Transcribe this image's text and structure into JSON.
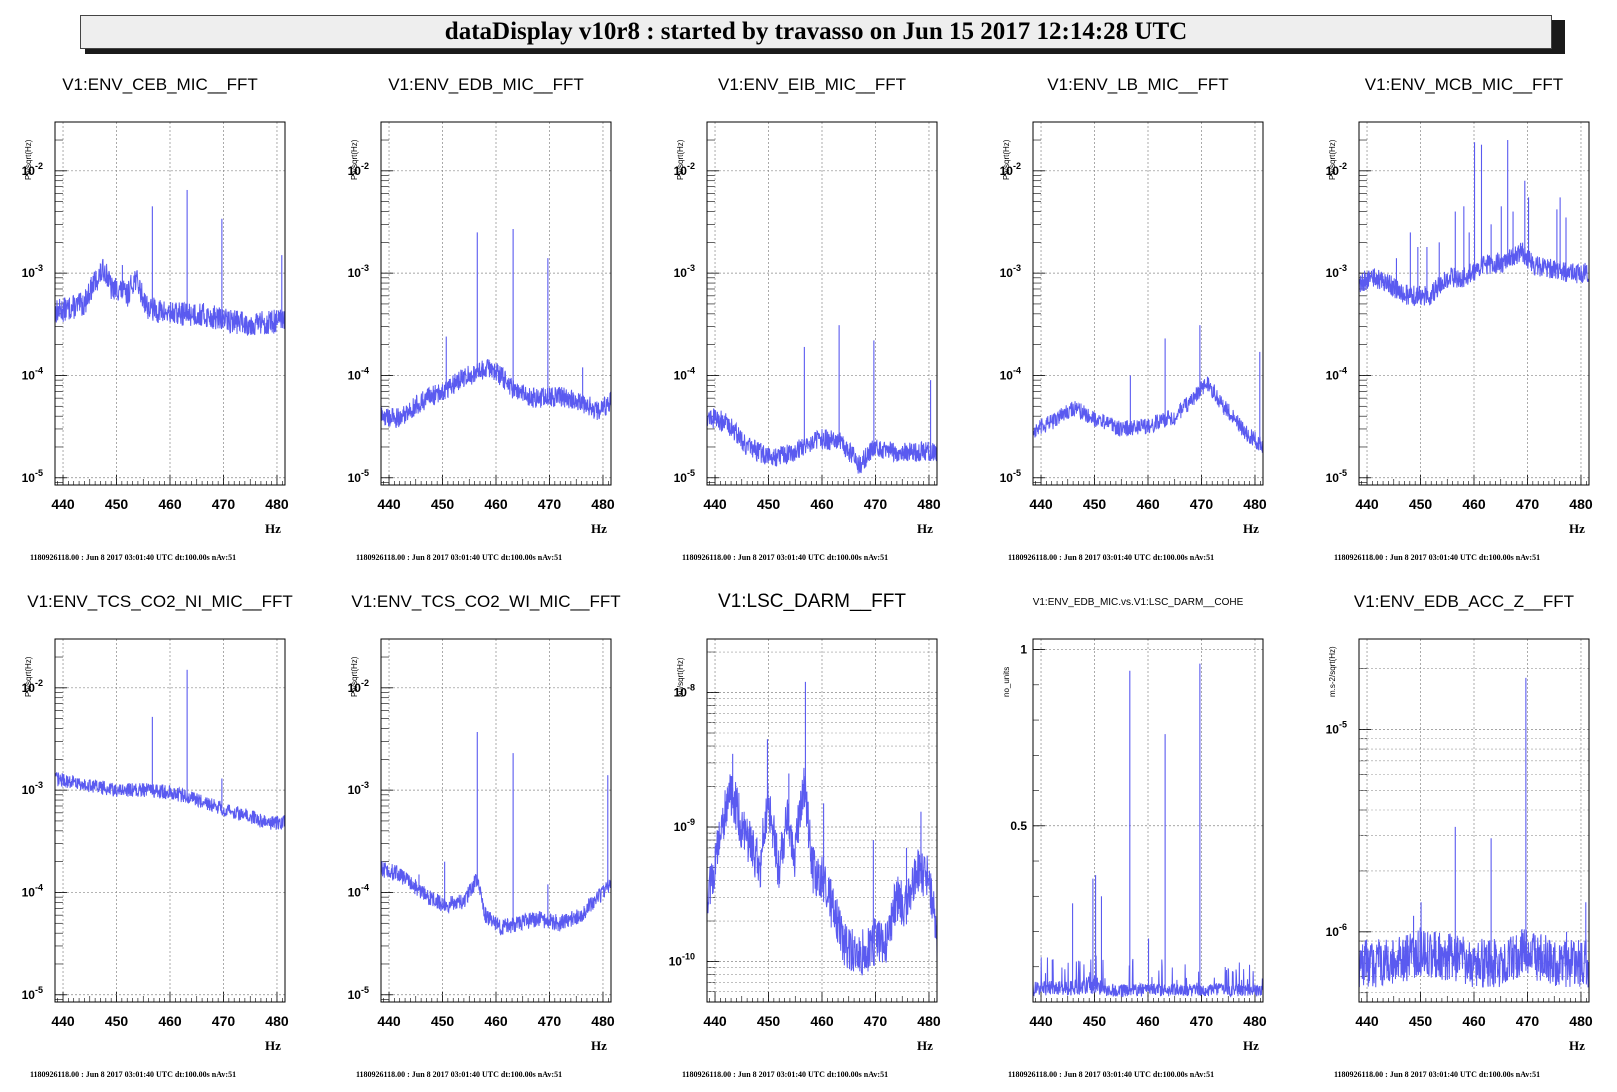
{
  "window_title": "dataDisplay v10r8 : started by travasso on Jun 15 2017 12:14:28 UTC",
  "footer_text": "1180926118.00 : Jun  8 2017 03:01:40 UTC dt:100.00s nAv:51",
  "x_unit": "Hz",
  "line_color": "#5a5af0",
  "chart_data": [
    {
      "type": "line",
      "title": "V1:ENV_CEB_MIC__FFT",
      "ylabel": "Pa/sqrt(Hz)",
      "xlabel": "Hz",
      "xlim": [
        438.5,
        481.5
      ],
      "ylog": true,
      "ylim": [
        8.5e-06,
        0.03
      ],
      "xticks": [
        440,
        450,
        460,
        470,
        480
      ],
      "yticks": [
        {
          "v": 1e-05,
          "base": "10",
          "exp": "-5"
        },
        {
          "v": 0.0001,
          "base": "10",
          "exp": "-4"
        },
        {
          "v": 0.001,
          "base": "10",
          "exp": "-3"
        },
        {
          "v": 0.01,
          "base": "10",
          "exp": "-2"
        }
      ],
      "baseline": [
        [
          438.5,
          0.00042
        ],
        [
          441,
          0.00045
        ],
        [
          444,
          0.0005
        ],
        [
          446.5,
          0.0009
        ],
        [
          447.8,
          0.0011
        ],
        [
          449,
          0.0007
        ],
        [
          450.5,
          0.0007
        ],
        [
          452,
          0.0006
        ],
        [
          453.5,
          0.0009
        ],
        [
          454.8,
          0.0006
        ],
        [
          456,
          0.00045
        ],
        [
          460,
          0.0004
        ],
        [
          465,
          0.0004
        ],
        [
          470,
          0.00035
        ],
        [
          475,
          0.00032
        ],
        [
          481.5,
          0.00034
        ]
      ],
      "peaks": [
        [
          456.7,
          0.0045
        ],
        [
          463.2,
          0.0065
        ],
        [
          469.7,
          0.0034
        ],
        [
          451.1,
          0.0012
        ],
        [
          480.9,
          0.0015
        ]
      ],
      "noise": 0.12
    },
    {
      "type": "line",
      "title": "V1:ENV_EDB_MIC__FFT",
      "ylabel": "Pa/sqrt(Hz)",
      "xlabel": "Hz",
      "xlim": [
        438.5,
        481.5
      ],
      "ylog": true,
      "ylim": [
        8.5e-06,
        0.03
      ],
      "xticks": [
        440,
        450,
        460,
        470,
        480
      ],
      "yticks": [
        {
          "v": 1e-05,
          "base": "10",
          "exp": "-5"
        },
        {
          "v": 0.0001,
          "base": "10",
          "exp": "-4"
        },
        {
          "v": 0.001,
          "base": "10",
          "exp": "-3"
        },
        {
          "v": 0.01,
          "base": "10",
          "exp": "-2"
        }
      ],
      "baseline": [
        [
          438.5,
          4e-05
        ],
        [
          442,
          3.8e-05
        ],
        [
          446,
          5.5e-05
        ],
        [
          450,
          7e-05
        ],
        [
          455,
          0.0001
        ],
        [
          459,
          0.00012
        ],
        [
          463,
          7.5e-05
        ],
        [
          467,
          6e-05
        ],
        [
          472,
          6.2e-05
        ],
        [
          476,
          5.5e-05
        ],
        [
          479,
          4.5e-05
        ],
        [
          481.5,
          5.5e-05
        ]
      ],
      "peaks": [
        [
          450.7,
          0.00024
        ],
        [
          456.5,
          0.0025
        ],
        [
          463.2,
          0.0027
        ],
        [
          469.7,
          0.0014
        ],
        [
          476.2,
          0.00012
        ],
        [
          446.3,
          7e-05
        ]
      ],
      "noise": 0.1
    },
    {
      "type": "line",
      "title": "V1:ENV_EIB_MIC__FFT",
      "ylabel": "Pa/sqrt(Hz)",
      "xlabel": "Hz",
      "xlim": [
        438.5,
        481.5
      ],
      "ylog": true,
      "ylim": [
        8.5e-06,
        0.03
      ],
      "xticks": [
        440,
        450,
        460,
        470,
        480
      ],
      "yticks": [
        {
          "v": 1e-05,
          "base": "10",
          "exp": "-5"
        },
        {
          "v": 0.0001,
          "base": "10",
          "exp": "-4"
        },
        {
          "v": 0.001,
          "base": "10",
          "exp": "-3"
        },
        {
          "v": 0.01,
          "base": "10",
          "exp": "-2"
        }
      ],
      "baseline": [
        [
          438.5,
          4e-05
        ],
        [
          442,
          3.5e-05
        ],
        [
          446,
          2e-05
        ],
        [
          450,
          1.6e-05
        ],
        [
          454,
          1.7e-05
        ],
        [
          459,
          2.4e-05
        ],
        [
          463,
          2.3e-05
        ],
        [
          466,
          1.6e-05
        ],
        [
          467,
          1.3e-05
        ],
        [
          470,
          2e-05
        ],
        [
          474,
          1.8e-05
        ],
        [
          481.5,
          1.8e-05
        ]
      ],
      "peaks": [
        [
          456.7,
          0.00019
        ],
        [
          463.2,
          0.00031
        ],
        [
          469.7,
          0.00022
        ],
        [
          480.3,
          9e-05
        ]
      ],
      "noise": 0.1
    },
    {
      "type": "line",
      "title": "V1:ENV_LB_MIC__FFT",
      "ylabel": "Pa/sqrt(Hz)",
      "xlabel": "Hz",
      "xlim": [
        438.5,
        481.5
      ],
      "ylog": true,
      "ylim": [
        8.5e-06,
        0.03
      ],
      "xticks": [
        440,
        450,
        460,
        470,
        480
      ],
      "yticks": [
        {
          "v": 1e-05,
          "base": "10",
          "exp": "-5"
        },
        {
          "v": 0.0001,
          "base": "10",
          "exp": "-4"
        },
        {
          "v": 0.001,
          "base": "10",
          "exp": "-3"
        },
        {
          "v": 0.01,
          "base": "10",
          "exp": "-2"
        }
      ],
      "baseline": [
        [
          438.5,
          2.8e-05
        ],
        [
          442,
          3.5e-05
        ],
        [
          446,
          4.8e-05
        ],
        [
          450,
          3.8e-05
        ],
        [
          455,
          3e-05
        ],
        [
          460,
          3.2e-05
        ],
        [
          465,
          4e-05
        ],
        [
          468,
          5.5e-05
        ],
        [
          471,
          8.5e-05
        ],
        [
          474,
          5e-05
        ],
        [
          478,
          2.8e-05
        ],
        [
          481.5,
          2e-05
        ]
      ],
      "peaks": [
        [
          456.7,
          0.0001
        ],
        [
          463.2,
          0.00023
        ],
        [
          469.7,
          0.00031
        ],
        [
          480.9,
          0.00017
        ]
      ],
      "noise": 0.08
    },
    {
      "type": "line",
      "title": "V1:ENV_MCB_MIC__FFT",
      "ylabel": "Pa/sqrt(Hz)",
      "xlabel": "Hz",
      "xlim": [
        438.5,
        481.5
      ],
      "ylog": true,
      "ylim": [
        8.5e-06,
        0.03
      ],
      "xticks": [
        440,
        450,
        460,
        470,
        480
      ],
      "yticks": [
        {
          "v": 1e-05,
          "base": "10",
          "exp": "-5"
        },
        {
          "v": 0.0001,
          "base": "10",
          "exp": "-4"
        },
        {
          "v": 0.001,
          "base": "10",
          "exp": "-3"
        },
        {
          "v": 0.01,
          "base": "10",
          "exp": "-2"
        }
      ],
      "baseline": [
        [
          438.5,
          0.0008
        ],
        [
          441,
          0.0009
        ],
        [
          444,
          0.0008
        ],
        [
          446,
          0.00065
        ],
        [
          448,
          0.0006
        ],
        [
          452,
          0.0006
        ],
        [
          455,
          0.0009
        ],
        [
          458,
          0.0009
        ],
        [
          462,
          0.0012
        ],
        [
          466,
          0.0013
        ],
        [
          469,
          0.0016
        ],
        [
          471,
          0.0012
        ],
        [
          475,
          0.0011
        ],
        [
          478,
          0.001
        ],
        [
          481.5,
          0.001
        ]
      ],
      "peaks": [
        [
          445.5,
          0.0014
        ],
        [
          448.1,
          0.0025
        ],
        [
          449.5,
          0.0018
        ],
        [
          451.2,
          0.0018
        ],
        [
          453.5,
          0.002
        ],
        [
          456.5,
          0.004
        ],
        [
          458.1,
          0.0045
        ],
        [
          459.1,
          0.0025
        ],
        [
          460.1,
          0.019
        ],
        [
          461.4,
          0.018
        ],
        [
          463.2,
          0.003
        ],
        [
          465.1,
          0.0045
        ],
        [
          466.3,
          0.02
        ],
        [
          467.3,
          0.004
        ],
        [
          469.5,
          0.008
        ],
        [
          470.2,
          0.0055
        ],
        [
          475.5,
          0.0042
        ],
        [
          476.1,
          0.0055
        ],
        [
          477.2,
          0.0035
        ]
      ],
      "noise": 0.1
    },
    {
      "type": "line",
      "title": "V1:ENV_TCS_CO2_NI_MIC__FFT",
      "ylabel": "Pa/sqrt(Hz)",
      "xlabel": "Hz",
      "xlim": [
        438.5,
        481.5
      ],
      "ylog": true,
      "ylim": [
        8.5e-06,
        0.03
      ],
      "xticks": [
        440,
        450,
        460,
        470,
        480
      ],
      "yticks": [
        {
          "v": 1e-05,
          "base": "10",
          "exp": "-5"
        },
        {
          "v": 0.0001,
          "base": "10",
          "exp": "-4"
        },
        {
          "v": 0.001,
          "base": "10",
          "exp": "-3"
        },
        {
          "v": 0.01,
          "base": "10",
          "exp": "-2"
        }
      ],
      "baseline": [
        [
          438.5,
          0.0013
        ],
        [
          445,
          0.0011
        ],
        [
          450,
          0.001
        ],
        [
          456,
          0.001
        ],
        [
          460,
          0.00095
        ],
        [
          465,
          0.0008
        ],
        [
          470,
          0.00065
        ],
        [
          475,
          0.00055
        ],
        [
          478,
          0.00048
        ],
        [
          481.5,
          0.00048
        ]
      ],
      "peaks": [
        [
          456.7,
          0.0052
        ],
        [
          463.2,
          0.015
        ],
        [
          469.7,
          0.0013
        ]
      ],
      "noise": 0.07
    },
    {
      "type": "line",
      "title": "V1:ENV_TCS_CO2_WI_MIC__FFT",
      "ylabel": "Pa/sqrt(Hz)",
      "xlabel": "Hz",
      "xlim": [
        438.5,
        481.5
      ],
      "ylog": true,
      "ylim": [
        8.5e-06,
        0.03
      ],
      "xticks": [
        440,
        450,
        460,
        470,
        480
      ],
      "yticks": [
        {
          "v": 1e-05,
          "base": "10",
          "exp": "-5"
        },
        {
          "v": 0.0001,
          "base": "10",
          "exp": "-4"
        },
        {
          "v": 0.001,
          "base": "10",
          "exp": "-3"
        },
        {
          "v": 0.01,
          "base": "10",
          "exp": "-2"
        }
      ],
      "baseline": [
        [
          438.5,
          0.00017
        ],
        [
          442,
          0.00015
        ],
        [
          446,
          0.0001
        ],
        [
          450,
          7.5e-05
        ],
        [
          454,
          8e-05
        ],
        [
          456.3,
          0.00013
        ],
        [
          458,
          6e-05
        ],
        [
          461,
          4.5e-05
        ],
        [
          464,
          5e-05
        ],
        [
          468,
          5.5e-05
        ],
        [
          472,
          5e-05
        ],
        [
          476,
          6e-05
        ],
        [
          479,
          9e-05
        ],
        [
          481.5,
          0.00012
        ]
      ],
      "peaks": [
        [
          450.4,
          0.0002
        ],
        [
          456.5,
          0.0037
        ],
        [
          463.2,
          0.0023
        ],
        [
          469.7,
          0.00012
        ],
        [
          480.9,
          0.0014
        ],
        [
          445.6,
          0.00015
        ]
      ],
      "noise": 0.08
    },
    {
      "type": "line",
      "title": "V1:LSC_DARM__FFT",
      "ylabel": "au/sqrt(Hz)",
      "xlabel": "Hz",
      "xlim": [
        438.5,
        481.5
      ],
      "ylog": true,
      "ylim": [
        5e-11,
        2.5e-08
      ],
      "xticks": [
        440,
        450,
        460,
        470,
        480
      ],
      "yticks": [
        {
          "v": 1e-10,
          "base": "10",
          "exp": "-10"
        },
        {
          "v": 1e-09,
          "base": "10",
          "exp": "-9"
        },
        {
          "v": 1e-08,
          "base": "10",
          "exp": "-8"
        }
      ],
      "baseline": [
        [
          438.5,
          3e-10
        ],
        [
          440,
          5e-10
        ],
        [
          442,
          1.3e-09
        ],
        [
          443,
          1.8e-09
        ],
        [
          445,
          1e-09
        ],
        [
          447,
          7e-10
        ],
        [
          448.5,
          5e-10
        ],
        [
          450,
          1.5e-09
        ],
        [
          451,
          9e-10
        ],
        [
          452,
          4e-10
        ],
        [
          453.5,
          1.2e-09
        ],
        [
          455,
          6e-10
        ],
        [
          456.5,
          2e-09
        ],
        [
          458,
          5e-10
        ],
        [
          460,
          4e-10
        ],
        [
          462,
          2.5e-10
        ],
        [
          464,
          1.4e-10
        ],
        [
          466,
          1.1e-10
        ],
        [
          468,
          1.2e-10
        ],
        [
          470,
          1.4e-10
        ],
        [
          472,
          1.3e-10
        ],
        [
          474,
          3e-10
        ],
        [
          476,
          2.5e-10
        ],
        [
          478,
          5e-10
        ],
        [
          480,
          4e-10
        ],
        [
          481.5,
          1.4e-10
        ]
      ],
      "peaks": [
        [
          443.3,
          3.5e-09
        ],
        [
          449.8,
          4.5e-09
        ],
        [
          453.8,
          2.5e-09
        ],
        [
          456.9,
          1.2e-08
        ],
        [
          460.3,
          1.5e-09
        ],
        [
          469.6,
          8e-10
        ],
        [
          475.8,
          7e-10
        ],
        [
          478.5,
          1.3e-09
        ],
        [
          479.5,
          4e-10
        ]
      ],
      "noise": 0.18
    },
    {
      "type": "line",
      "title": "V1:ENV_EDB_MIC.vs.V1:LSC_DARM__COHE",
      "ylabel": "no_units",
      "xlabel": "Hz",
      "xlim": [
        438.5,
        481.5
      ],
      "ylog": false,
      "ylim": [
        0,
        1.03
      ],
      "xticks": [
        440,
        450,
        460,
        470,
        480
      ],
      "yticks": [
        {
          "v": 0.5,
          "label": "0.5"
        },
        {
          "v": 1,
          "label": "1"
        }
      ],
      "baseline": [
        [
          438.5,
          0.035
        ],
        [
          445,
          0.035
        ],
        [
          450,
          0.045
        ],
        [
          452,
          0.03
        ],
        [
          460,
          0.03
        ],
        [
          470,
          0.03
        ],
        [
          481.5,
          0.03
        ]
      ],
      "peaks": [
        [
          442.1,
          0.12
        ],
        [
          445.9,
          0.28
        ],
        [
          449.7,
          0.35
        ],
        [
          450.2,
          0.36
        ],
        [
          451.3,
          0.3
        ],
        [
          456.6,
          0.94
        ],
        [
          460.1,
          0.18
        ],
        [
          463.2,
          0.76
        ],
        [
          469.7,
          0.96
        ]
      ],
      "noise": 0.6
    },
    {
      "type": "line",
      "title": "V1:ENV_EDB_ACC_Z__FFT",
      "ylabel": "m.s-2/sqrt(Hz)",
      "xlabel": "Hz",
      "xlim": [
        438.5,
        481.5
      ],
      "ylog": true,
      "ylim": [
        4.5e-07,
        2.8e-05
      ],
      "xticks": [
        440,
        450,
        460,
        470,
        480
      ],
      "yticks": [
        {
          "v": 1e-06,
          "base": "10",
          "exp": "-6"
        },
        {
          "v": 1e-05,
          "base": "10",
          "exp": "-5"
        }
      ],
      "baseline": [
        [
          438.5,
          7e-07
        ],
        [
          445,
          7e-07
        ],
        [
          450,
          8e-07
        ],
        [
          455,
          7.5e-07
        ],
        [
          460,
          7e-07
        ],
        [
          465,
          7e-07
        ],
        [
          469,
          8e-07
        ],
        [
          472,
          7.5e-07
        ],
        [
          476,
          7e-07
        ],
        [
          481.5,
          7e-07
        ]
      ],
      "peaks": [
        [
          448.7,
          1.2e-06
        ],
        [
          450.1,
          1.4e-06
        ],
        [
          456.5,
          3.3e-06
        ],
        [
          463.2,
          2.9e-06
        ],
        [
          469.7,
          1.8e-05
        ],
        [
          477.3,
          1e-06
        ],
        [
          480.9,
          1.4e-06
        ]
      ],
      "noise": 0.12
    }
  ]
}
